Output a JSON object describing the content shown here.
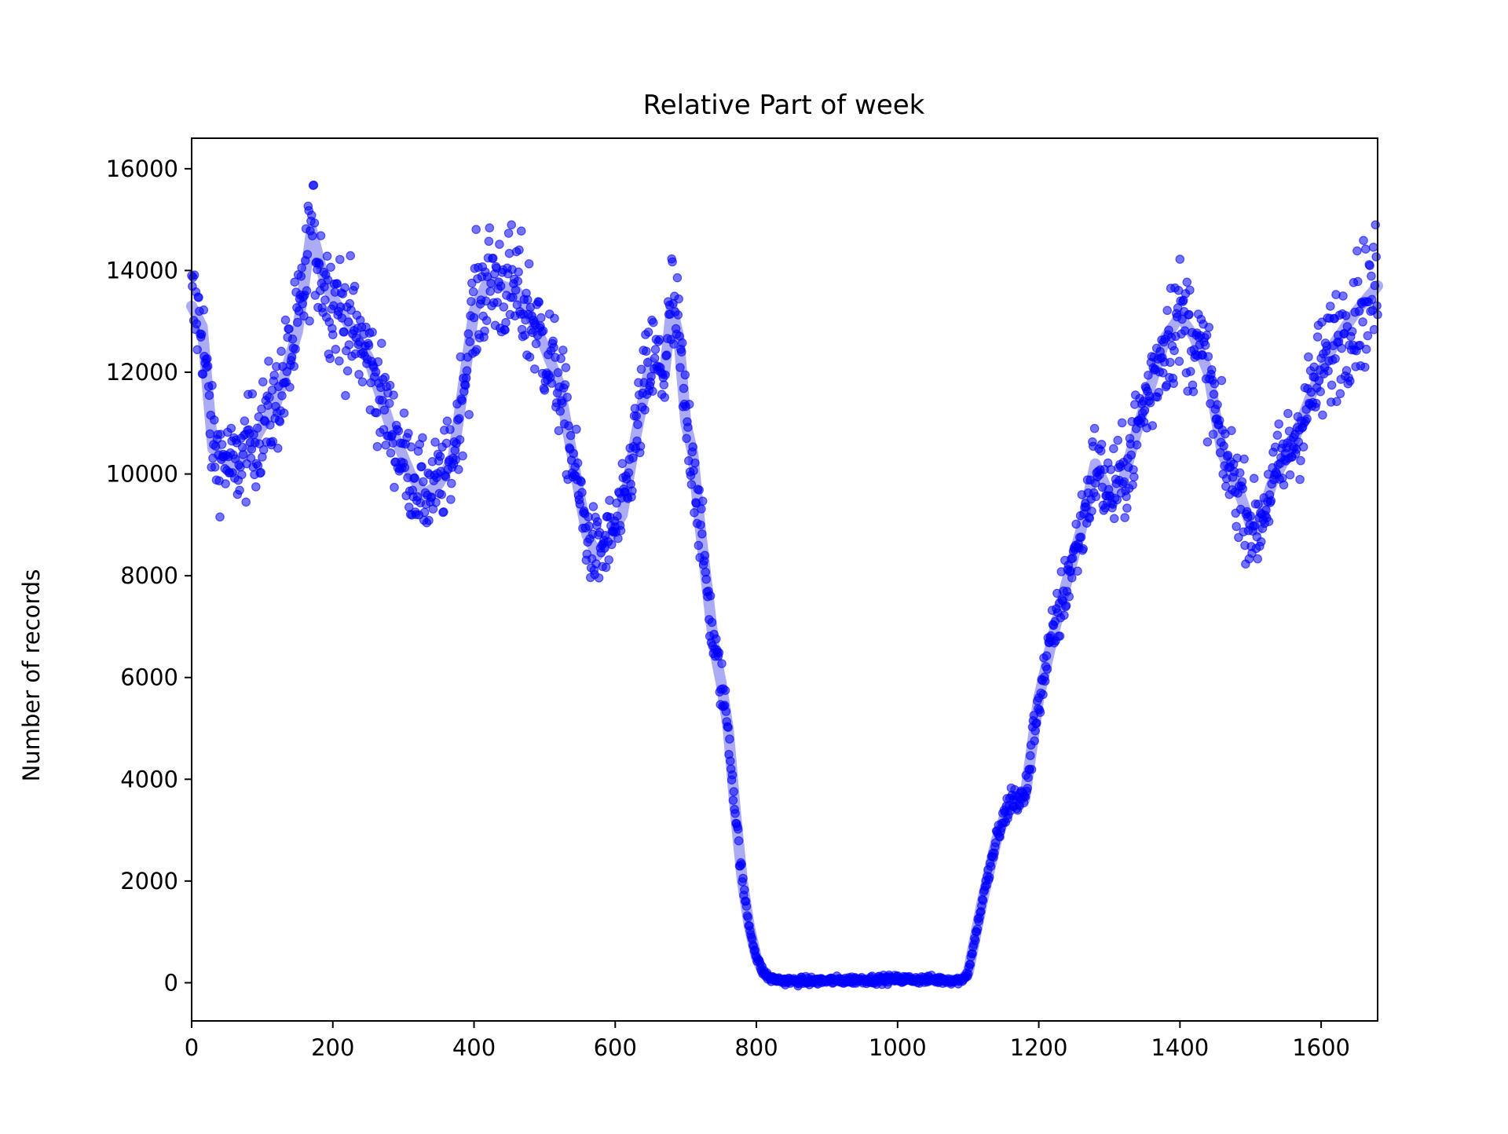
{
  "chart_data": {
    "type": "scatter",
    "title": "Relative Part of week",
    "xlabel": "",
    "ylabel": "Number of records",
    "xlim": [
      0,
      1680
    ],
    "ylim": [
      -750,
      16600
    ],
    "xticks": [
      0,
      200,
      400,
      600,
      800,
      1000,
      1200,
      1400,
      1600
    ],
    "yticks": [
      0,
      2000,
      4000,
      6000,
      8000,
      10000,
      12000,
      14000,
      16000
    ],
    "grid": false,
    "legend": "none",
    "colors": {
      "points": "#0000ff",
      "trend": "#6666ee"
    },
    "trend": {
      "x": [
        0,
        15,
        30,
        60,
        90,
        120,
        150,
        170,
        190,
        220,
        250,
        280,
        310,
        330,
        350,
        370,
        400,
        420,
        440,
        460,
        480,
        500,
        520,
        540,
        560,
        575,
        590,
        610,
        630,
        650,
        670,
        680,
        690,
        700,
        710,
        720,
        730,
        740,
        750,
        760,
        770,
        780,
        790,
        800,
        810,
        820,
        840,
        860,
        900,
        950,
        1000,
        1050,
        1090,
        1100,
        1110,
        1120,
        1140,
        1160,
        1180,
        1200,
        1220,
        1240,
        1260,
        1280,
        1300,
        1320,
        1340,
        1360,
        1380,
        1400,
        1420,
        1440,
        1460,
        1480,
        1500,
        1510,
        1530,
        1560,
        1590,
        1620,
        1650,
        1680
      ],
      "y": [
        13300,
        12900,
        10500,
        10100,
        10700,
        11400,
        12800,
        14800,
        13700,
        13000,
        12300,
        11000,
        10000,
        9600,
        9800,
        10300,
        13200,
        13800,
        13700,
        13600,
        13100,
        12500,
        11800,
        10300,
        8800,
        8400,
        8700,
        9200,
        10800,
        12200,
        12000,
        13300,
        12700,
        11000,
        10400,
        9000,
        7800,
        6600,
        5900,
        5000,
        3400,
        2000,
        1100,
        500,
        200,
        80,
        40,
        30,
        40,
        60,
        70,
        60,
        50,
        200,
        900,
        1600,
        2800,
        3600,
        3600,
        5600,
        6800,
        7900,
        8900,
        10200,
        9600,
        9900,
        10900,
        11800,
        12700,
        13100,
        12700,
        12000,
        10400,
        9800,
        9000,
        8900,
        9800,
        10600,
        11700,
        12600,
        13200,
        13700
      ]
    }
  }
}
